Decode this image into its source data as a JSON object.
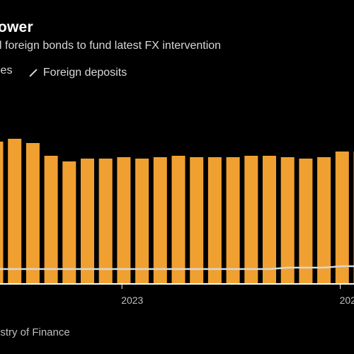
{
  "title": "ower",
  "subtitle": "l foreign bonds to fund latest FX intervention",
  "source": "istry of Finance",
  "colors": {
    "background": "#000000",
    "bar": "#f0a030",
    "line": "#d8d8d8",
    "axis": "#ffffff"
  },
  "legend": [
    {
      "label": "les",
      "icon": "bar-swatch",
      "color": "#f0a030"
    },
    {
      "label": "Foreign deposits",
      "icon": "line-swatch",
      "color": "#d8d8d8"
    }
  ],
  "chart_data": {
    "type": "bar",
    "title": "ower",
    "subtitle": "l foreign bonds to fund latest FX intervention",
    "x_tick_labels": [
      {
        "label": "2023",
        "index": 6
      },
      {
        "label": "202",
        "index": 18
      }
    ],
    "series": [
      {
        "name": "les",
        "type": "bar",
        "values": [
          1.0,
          1.02,
          0.99,
          0.9,
          0.86,
          0.88,
          0.88,
          0.89,
          0.88,
          0.89,
          0.9,
          0.89,
          0.89,
          0.89,
          0.9,
          0.9,
          0.89,
          0.88,
          0.89,
          0.93,
          0.93
        ]
      },
      {
        "name": "Foreign deposits",
        "type": "line",
        "values": [
          0.1,
          0.1,
          0.1,
          0.1,
          0.1,
          0.1,
          0.1,
          0.1,
          0.1,
          0.1,
          0.1,
          0.1,
          0.1,
          0.1,
          0.1,
          0.1,
          0.11,
          0.11,
          0.11,
          0.12,
          0.12
        ]
      }
    ],
    "ylim": [
      0,
      1.1
    ],
    "grid": false,
    "legend_position": "top-left"
  }
}
